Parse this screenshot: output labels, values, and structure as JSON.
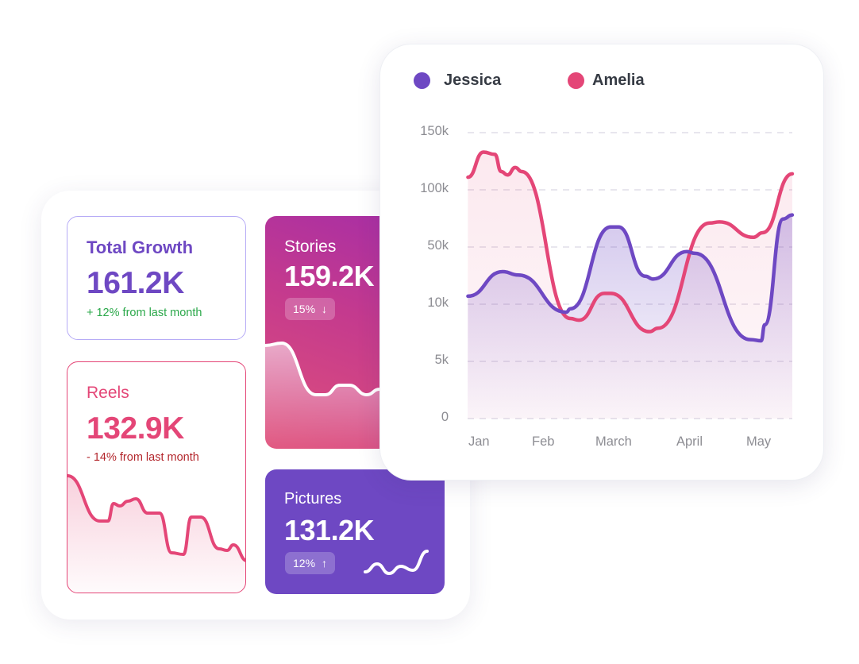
{
  "cards": {
    "total_growth": {
      "title": "Total Growth",
      "value": "161.2K",
      "change": "+ 12% from last month",
      "color": "#6e48c3",
      "change_color": "#2ba84a"
    },
    "reels": {
      "title": "Reels",
      "value": "132.9K",
      "change": "- 14% from last month",
      "color": "#e44677",
      "change_color": "#b3262c"
    },
    "stories": {
      "title": "Stories",
      "value": "159.2K",
      "badge": "15%",
      "badge_icon": "arrow-down-icon",
      "badge_arrow": "↓"
    },
    "pictures": {
      "title": "Pictures",
      "value": "131.2K",
      "badge": "12%",
      "badge_icon": "arrow-up-icon",
      "badge_arrow": "↑",
      "color": "#6e48c3"
    }
  },
  "chart_data": {
    "type": "area",
    "legend_position": "top-left",
    "grid": true,
    "categories": [
      "Jan",
      "Feb",
      "March",
      "April",
      "May"
    ],
    "y_ticks": [
      "0",
      "5k",
      "10k",
      "50k",
      "100k",
      "150k"
    ],
    "y_tick_values": [
      0,
      5000,
      10000,
      50000,
      100000,
      150000
    ],
    "ylim": [
      0,
      150000
    ],
    "series": [
      {
        "name": "Jessica",
        "color": "#6e48c3",
        "points": [
          [
            -0.13,
            15600
          ],
          [
            0.36,
            32800
          ],
          [
            0.58,
            30400
          ],
          [
            1.26,
            9300
          ],
          [
            1.32,
            9600
          ],
          [
            1.89,
            67500
          ],
          [
            2.0,
            67500
          ],
          [
            2.38,
            29600
          ],
          [
            2.49,
            27600
          ],
          [
            2.97,
            46800
          ],
          [
            3.08,
            45600
          ],
          [
            3.87,
            6900
          ],
          [
            4.02,
            6800
          ],
          [
            4.07,
            8200
          ],
          [
            4.33,
            74500
          ],
          [
            4.46,
            78000
          ]
        ]
      },
      {
        "name": "Amelia",
        "color": "#e44677",
        "points": [
          [
            -0.13,
            111000
          ],
          [
            0.09,
            133000
          ],
          [
            0.25,
            131000
          ],
          [
            0.34,
            116000
          ],
          [
            0.43,
            113000
          ],
          [
            0.54,
            119500
          ],
          [
            0.63,
            116000
          ],
          [
            1.32,
            8750
          ],
          [
            1.44,
            8600
          ],
          [
            1.8,
            17600
          ],
          [
            1.89,
            17600
          ],
          [
            2.44,
            7600
          ],
          [
            2.56,
            7900
          ],
          [
            3.29,
            71000
          ],
          [
            3.43,
            72000
          ],
          [
            3.91,
            58500
          ],
          [
            4.04,
            62500
          ],
          [
            4.46,
            114000
          ]
        ]
      }
    ]
  }
}
